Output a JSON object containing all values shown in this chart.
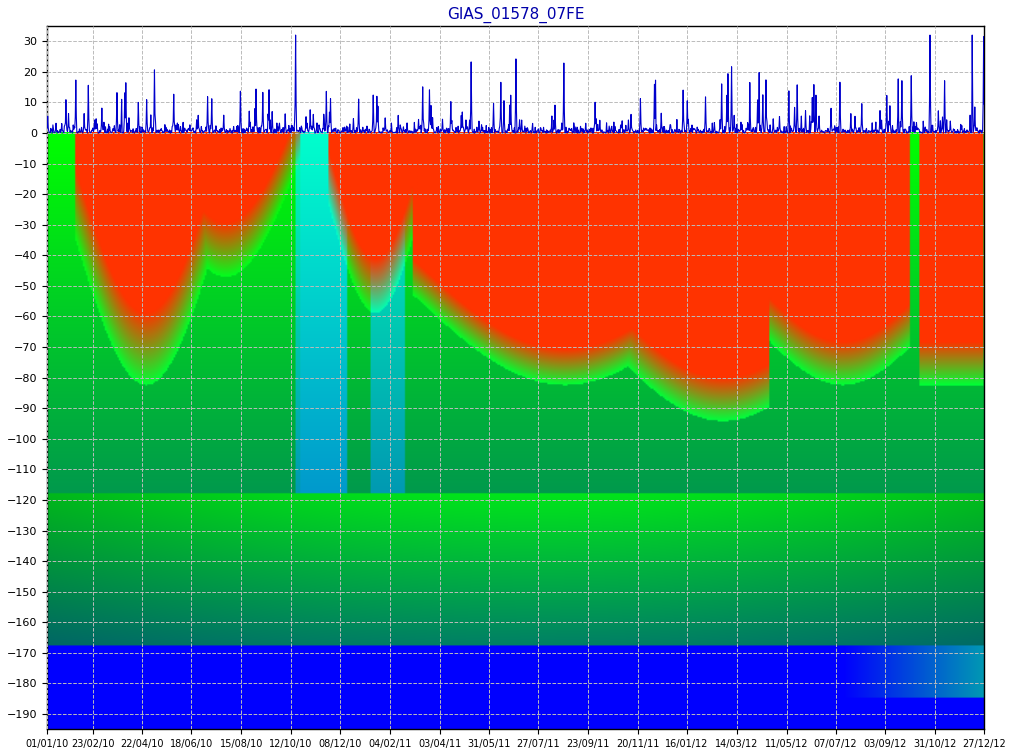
{
  "title": "GIAS_01578_07FE",
  "title_color": "#0000aa",
  "title_fontsize": 11,
  "background_color": "#ffffff",
  "plot_background": "#ffffff",
  "ylim": [
    -195,
    35
  ],
  "yticks": [
    30,
    20,
    10,
    0,
    -10,
    -20,
    -30,
    -40,
    -50,
    -60,
    -70,
    -80,
    -90,
    -100,
    -110,
    -120,
    -130,
    -140,
    -150,
    -160,
    -170,
    -180,
    -190
  ],
  "grid_color": "#bbbbbb",
  "grid_style": "--",
  "date_start": "2010-01-01",
  "date_end": "2012-12-27",
  "xtick_labels": [
    "01/01/10",
    "23/02/10",
    "22/04/10",
    "18/06/10",
    "15/08/10",
    "12/10/10",
    "08/12/10",
    "04/02/11",
    "03/04/11",
    "31/05/11",
    "27/07/11",
    "23/09/11",
    "20/11/11",
    "16/01/12",
    "14/03/12",
    "11/05/12",
    "07/07/12",
    "03/09/12",
    "31/10/12",
    "27/12/12"
  ],
  "line_color": "#0000cc",
  "line_width": 0.8,
  "figsize": [
    10.13,
    7.56
  ],
  "dpi": 100
}
